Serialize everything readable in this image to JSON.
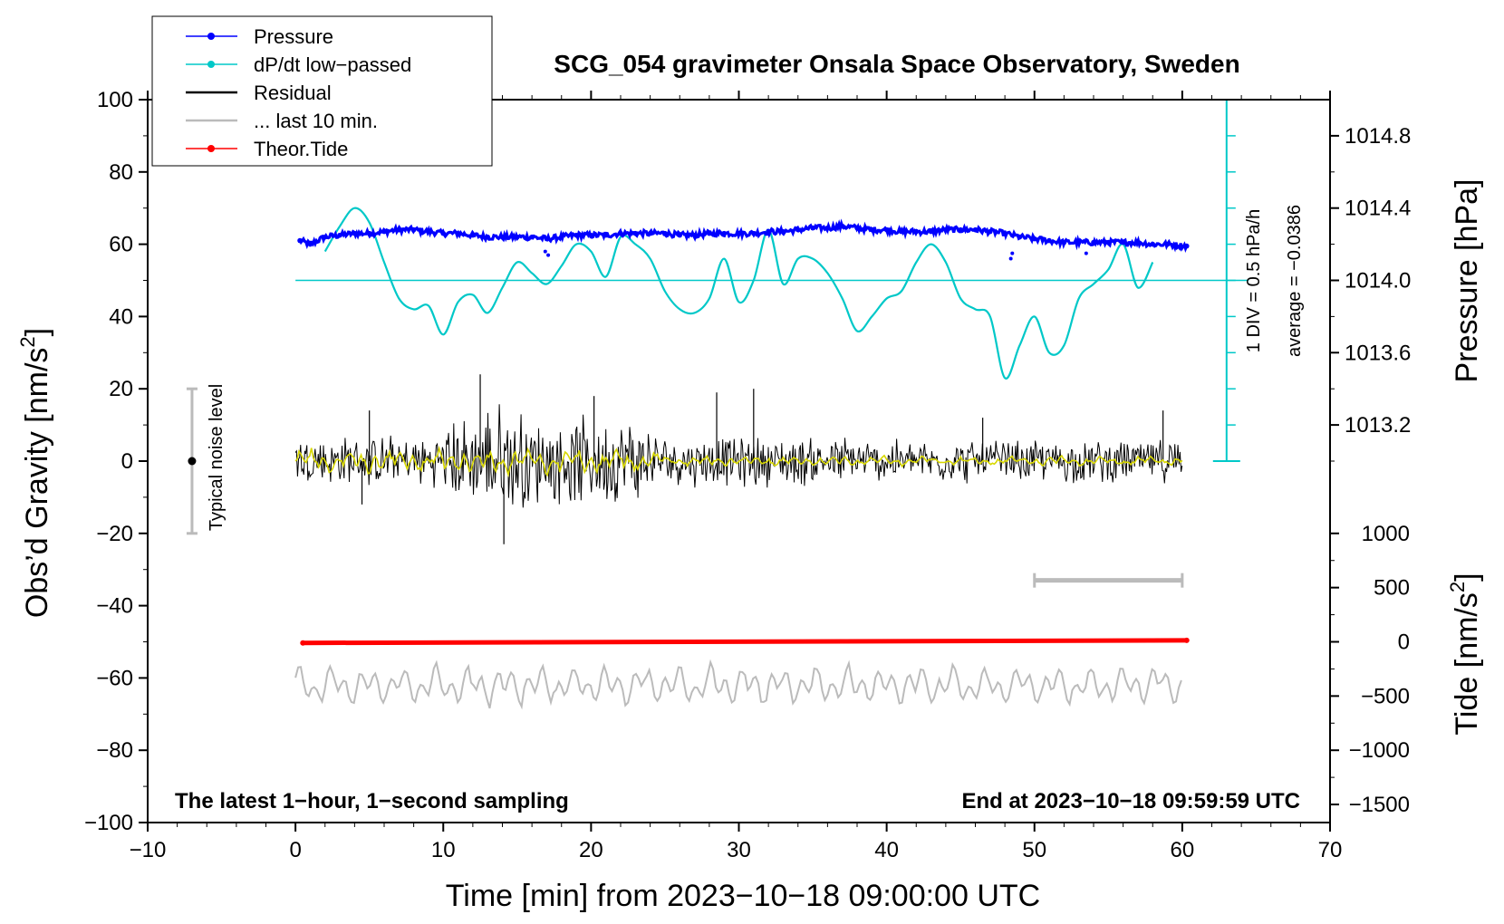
{
  "chart_data": {
    "type": "line",
    "title": "SCG_054 gravimeter Onsala Space Observatory, Sweden",
    "xlabel": "Time [min] from 2023−10−18 09:00:00 UTC",
    "ylabel": "Obs’d Gravity [nm/s",
    "ylabel_sup": "2",
    "ylabel_end": "]",
    "xlim": [
      -10,
      70
    ],
    "ylim": [
      -100,
      100
    ],
    "xticks": [
      -10,
      0,
      10,
      20,
      30,
      40,
      50,
      60,
      70
    ],
    "xtick_labels": [
      "−10",
      "0",
      "10",
      "20",
      "30",
      "40",
      "50",
      "60",
      "70"
    ],
    "yticks": [
      -100,
      -80,
      -60,
      -40,
      -20,
      0,
      20,
      40,
      60,
      80,
      100
    ],
    "ytick_labels": [
      "−100",
      "−80",
      "−60",
      "−40",
      "−20",
      "0",
      "20",
      "40",
      "60",
      "80",
      "100"
    ],
    "pressure_axis": {
      "label": "Pressure [hPa]",
      "ticks": [
        1013.2,
        1013.6,
        1014.0,
        1014.4,
        1014.8
      ],
      "tick_labels": [
        "1013.2",
        "1013.6",
        "1014.0",
        "1014.4",
        "1014.8"
      ],
      "map": {
        "value_at_y50": 1014.0,
        "hpa_per_nm": 0.02
      }
    },
    "tide_axis": {
      "label": "Tide [nm/s",
      "label_sup": "2",
      "label_end": "]",
      "ticks": [
        -1500,
        -1000,
        -500,
        0,
        500,
        1000
      ],
      "tick_labels": [
        "−1500",
        "−1000",
        "−500",
        "0",
        "500",
        "1000"
      ],
      "map": {
        "value_at_ym50": 0,
        "tide_per_nm": 33.333
      }
    },
    "legend": [
      {
        "label": "Pressure",
        "color": "#0000ff",
        "marker": true
      },
      {
        "label": "dP/dt low−passed",
        "color": "#00c8c8",
        "marker": true
      },
      {
        "label": "Residual",
        "color": "#000000",
        "marker": false
      },
      {
        "label": "... last 10 min.",
        "color": "#bbbbbb",
        "marker": false
      },
      {
        "label": "Theor.Tide",
        "color": "#ff0000",
        "marker": true
      }
    ],
    "annotations": {
      "noise_label": "Typical noise level",
      "noise_range": [
        -20,
        20
      ],
      "noise_x": -7,
      "div_label": "1 DIV = 0.5 hPa/h",
      "avg_label": "average = −0.0386",
      "div_scale_x": 63,
      "div_scale_range": [
        0,
        100
      ],
      "bottom_left": "The latest 1−hour, 1−second sampling",
      "bottom_right": "End at 2023−10−18 09:59:59 UTC",
      "last10_bar": {
        "x": [
          50,
          60
        ],
        "y": -33
      }
    },
    "series": [
      {
        "name": "Pressure",
        "color": "#0000ff",
        "x": [
          0.3,
          1,
          2,
          3,
          4,
          5,
          6,
          7,
          8,
          9,
          10,
          11,
          12,
          13,
          14,
          15,
          16,
          17,
          18,
          19,
          20,
          21,
          22,
          23,
          24,
          25,
          26,
          27,
          28,
          29,
          30,
          31,
          32,
          33,
          34,
          35,
          36,
          37,
          38,
          39,
          40,
          41,
          42,
          43,
          44,
          45,
          46,
          47,
          48,
          49,
          50,
          51,
          52,
          53,
          54,
          55,
          56,
          57,
          58,
          59,
          60.3
        ],
        "values": [
          61,
          60,
          62,
          62.5,
          63,
          63,
          63.5,
          64,
          64,
          63.5,
          63,
          63,
          62.5,
          62,
          62,
          62,
          62,
          61.5,
          62,
          62.5,
          62.5,
          62.5,
          63,
          63,
          63,
          63,
          62.5,
          62.5,
          63,
          63,
          63,
          63,
          63.5,
          63.5,
          64,
          64.5,
          64.5,
          65,
          64.5,
          64,
          64,
          63.5,
          63.5,
          63.5,
          64,
          64,
          64,
          63.5,
          63,
          62,
          61.5,
          61,
          60.5,
          60.5,
          60.5,
          60.5,
          60.5,
          60.5,
          60,
          60,
          59.5
        ]
      },
      {
        "name": "dP/dt low-passed",
        "color": "#00c8c8",
        "x": [
          2,
          3,
          4,
          5,
          6,
          7,
          8,
          9,
          10,
          11,
          12,
          13,
          14,
          15,
          16,
          17,
          18,
          19,
          20,
          21,
          22,
          23,
          24,
          25,
          26,
          27,
          28,
          29,
          30,
          31,
          32,
          33,
          34,
          35,
          36,
          37,
          38,
          39,
          40,
          41,
          42,
          43,
          44,
          45,
          46,
          47,
          48,
          49,
          50,
          51,
          52,
          53,
          54,
          55,
          56,
          57,
          58
        ],
        "values": [
          58,
          65,
          70,
          66,
          55,
          45,
          42,
          43,
          35,
          44,
          46,
          41,
          48,
          55,
          52,
          49,
          54,
          60,
          58,
          51,
          62,
          60,
          56,
          47,
          42,
          41,
          45,
          56,
          44,
          50,
          64,
          49,
          56,
          56,
          52,
          45,
          36,
          40,
          45,
          47,
          55,
          60,
          55,
          45,
          42,
          40,
          23,
          32,
          40,
          30,
          32,
          45,
          49,
          53,
          60,
          48,
          55
        ]
      },
      {
        "name": "Theor.Tide",
        "color": "#ff0000",
        "x": [
          0.5,
          60.3
        ],
        "values": [
          -50.3,
          -49.6
        ]
      }
    ]
  }
}
